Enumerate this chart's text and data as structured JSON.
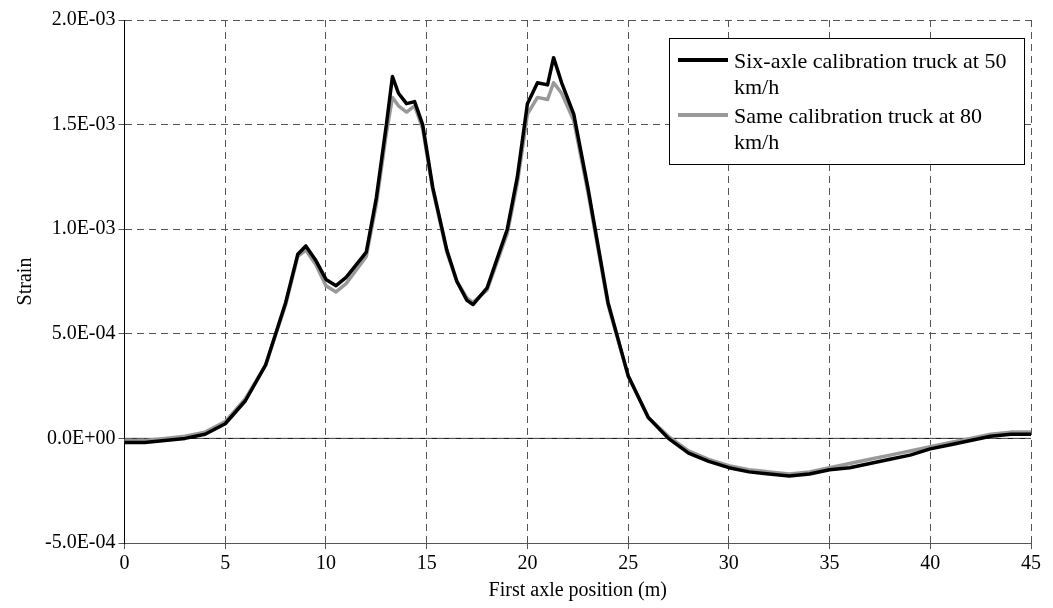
{
  "chart_data": {
    "type": "line",
    "xlabel": "First axle position (m)",
    "ylabel": "Strain",
    "xlim": [
      0,
      45
    ],
    "xticks": [
      0,
      5,
      10,
      15,
      20,
      25,
      30,
      35,
      40,
      45
    ],
    "ylim": [
      -0.0005,
      0.002
    ],
    "yticks": [
      {
        "value": -0.0005,
        "label": "-5.0E-04"
      },
      {
        "value": 0,
        "label": "0.0E+00"
      },
      {
        "value": 0.0005,
        "label": "5.0E-04"
      },
      {
        "value": 0.001,
        "label": "1.0E-03"
      },
      {
        "value": 0.0015,
        "label": "1.5E-03"
      },
      {
        "value": 0.002,
        "label": "2.0E-03"
      }
    ],
    "grid": true,
    "legend": "top right",
    "marker": "none",
    "line_style": "solid",
    "series": [
      {
        "name": "Six-axle calibration truck at 50 km/h",
        "color": "#000000",
        "x": [
          0,
          1,
          2,
          3,
          4,
          5,
          6,
          7,
          8,
          8.6,
          9,
          9.5,
          10,
          10.5,
          11,
          12,
          12.5,
          13,
          13.3,
          13.6,
          14,
          14.4,
          14.8,
          15.3,
          16,
          16.5,
          17,
          17.3,
          18,
          19,
          19.5,
          20,
          20.5,
          21,
          21.3,
          21.7,
          22.3,
          23,
          24,
          25,
          26,
          27,
          28,
          29,
          30,
          31,
          32,
          33,
          34,
          35,
          36,
          37,
          38,
          39,
          40,
          41,
          42,
          43,
          44,
          45
        ],
        "values": [
          -2e-05,
          -2e-05,
          -1e-05,
          0,
          2e-05,
          7e-05,
          0.00018,
          0.00035,
          0.00065,
          0.00088,
          0.00092,
          0.00085,
          0.00076,
          0.00073,
          0.00077,
          0.00089,
          0.00115,
          0.0015,
          0.00173,
          0.00165,
          0.0016,
          0.00161,
          0.0015,
          0.0012,
          0.0009,
          0.00075,
          0.00066,
          0.00064,
          0.00072,
          0.001,
          0.00125,
          0.0016,
          0.0017,
          0.00169,
          0.00182,
          0.0017,
          0.00155,
          0.0012,
          0.00065,
          0.0003,
          0.0001,
          0,
          -7e-05,
          -0.00011,
          -0.00014,
          -0.00016,
          -0.00017,
          -0.00018,
          -0.00017,
          -0.00015,
          -0.00014,
          -0.00012,
          -0.0001,
          -8e-05,
          -5e-05,
          -3e-05,
          -1e-05,
          1e-05,
          2e-05,
          2e-05
        ]
      },
      {
        "name": "Same calibration truck at 80 km/h",
        "color": "#999999",
        "x": [
          0,
          1,
          2,
          3,
          4,
          5,
          6,
          7,
          8,
          8.6,
          9,
          9.5,
          10,
          10.5,
          11,
          12,
          12.5,
          13,
          13.3,
          13.6,
          14,
          14.4,
          14.8,
          15.3,
          16,
          16.5,
          17,
          17.3,
          18,
          19,
          19.5,
          20,
          20.5,
          21,
          21.3,
          21.7,
          22.3,
          23,
          24,
          25,
          26,
          27,
          28,
          29,
          30,
          31,
          32,
          33,
          34,
          35,
          36,
          37,
          38,
          39,
          40,
          41,
          42,
          43,
          44,
          45
        ],
        "values": [
          -1e-05,
          -1e-05,
          0,
          1e-05,
          3e-05,
          8e-05,
          0.00019,
          0.00035,
          0.00064,
          0.00087,
          0.0009,
          0.00083,
          0.00073,
          0.0007,
          0.00074,
          0.00087,
          0.00112,
          0.00146,
          0.00163,
          0.00159,
          0.00156,
          0.00159,
          0.00148,
          0.00119,
          0.00089,
          0.00075,
          0.00067,
          0.00065,
          0.00071,
          0.00098,
          0.00122,
          0.00155,
          0.00163,
          0.00162,
          0.0017,
          0.00165,
          0.00152,
          0.00118,
          0.00064,
          0.0003,
          0.0001,
          1e-05,
          -6e-05,
          -0.0001,
          -0.00013,
          -0.00015,
          -0.00016,
          -0.00017,
          -0.00016,
          -0.00014,
          -0.00012,
          -0.0001,
          -8e-05,
          -6e-05,
          -4e-05,
          -2e-05,
          0,
          2e-05,
          3e-05,
          3e-05
        ]
      }
    ]
  }
}
